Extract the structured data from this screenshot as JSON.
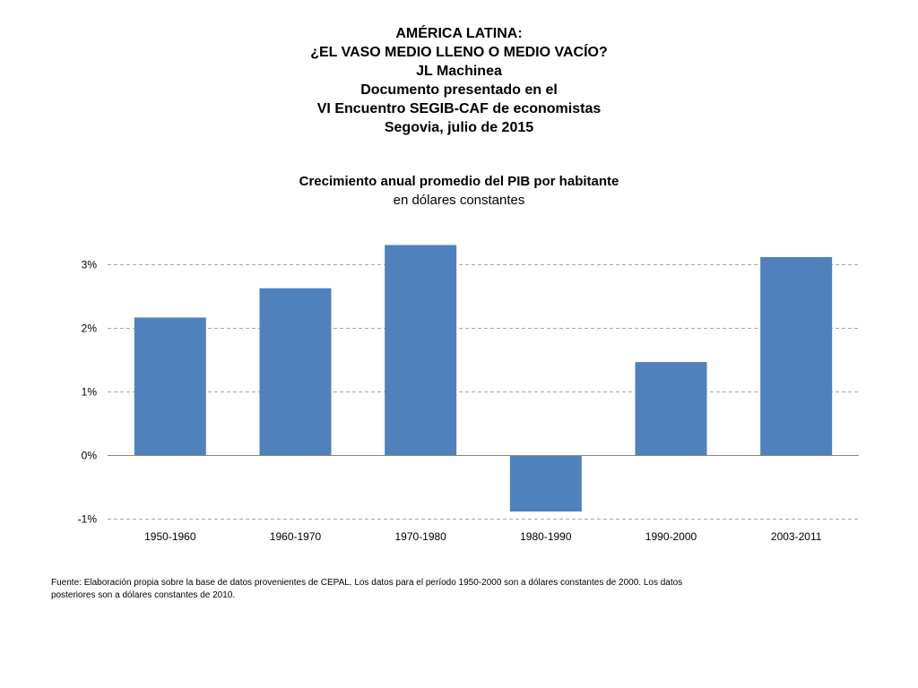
{
  "header": {
    "lines": [
      "AMÉRICA LATINA:",
      "¿EL VASO MEDIO LLENO O MEDIO VACÍO?",
      "JL Machinea",
      "Documento presentado en el",
      "VI Encuentro SEGIB-CAF de economistas",
      "Segovia, julio de 2015"
    ]
  },
  "chart_data": {
    "type": "bar",
    "title": "Crecimiento anual promedio del PIB por habitante",
    "subtitle": "en dólares constantes",
    "categories": [
      "1950-1960",
      "1960-1970",
      "1970-1980",
      "1980-1990",
      "1990-2000",
      "2003-2011"
    ],
    "values": [
      2.17,
      2.63,
      3.31,
      -0.88,
      1.47,
      3.12
    ],
    "ylim": [
      -1,
      3.5
    ],
    "yticks": [
      -1,
      0,
      1,
      2,
      3
    ],
    "ytick_labels": [
      "-1%",
      "0%",
      "1%",
      "2%",
      "3%"
    ],
    "grid": true,
    "legend": "none",
    "bar_color": "#4F81BD",
    "grid_color": "#A6A6A6",
    "axis_color": "#868686"
  },
  "source": {
    "text": "Fuente: Elaboración propia sobre la base de datos provenientes de CEPAL. Los datos para el período 1950-2000 son a dólares constantes de 2000. Los datos posteriores son a dólares constantes de 2010."
  }
}
